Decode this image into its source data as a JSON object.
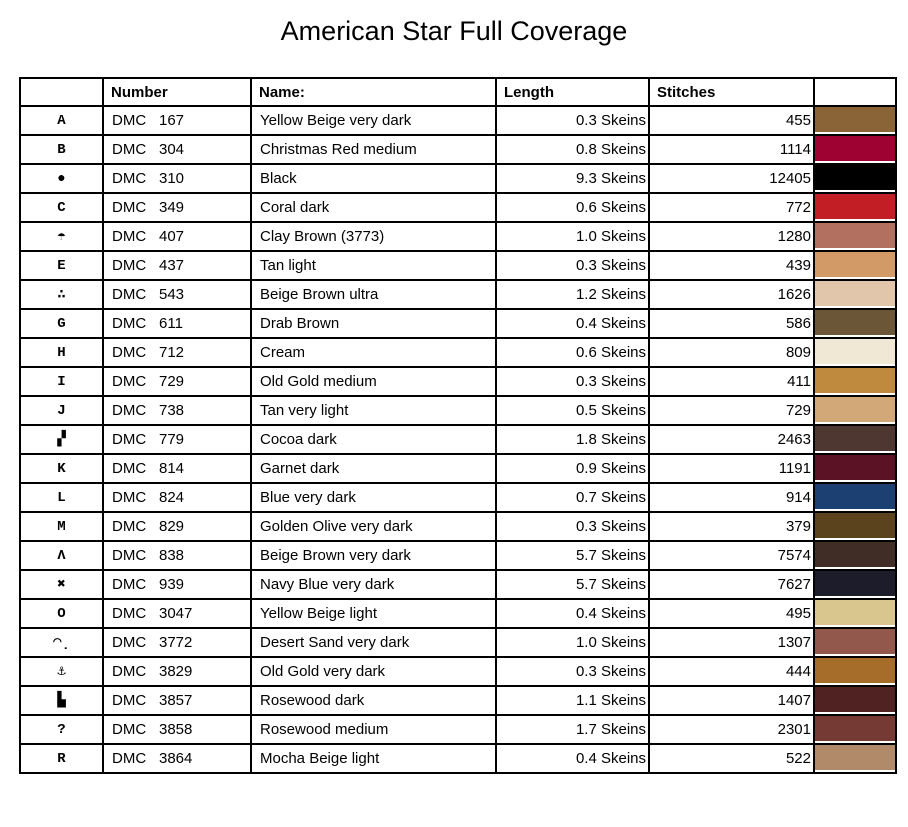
{
  "title": "American Star Full Coverage",
  "table": {
    "brand": "DMC",
    "headers": {
      "symbol": "",
      "number": "Number",
      "name": "Name:",
      "length": "Length",
      "stitches": "Stitches",
      "color": ""
    },
    "rows": [
      {
        "symbol": "A",
        "number": "167",
        "name": "Yellow Beige very dark",
        "length": "0.3 Skeins",
        "stitches": "455",
        "color": "#8A6337"
      },
      {
        "symbol": "B",
        "number": "304",
        "name": "Christmas Red medium",
        "length": "0.8 Skeins",
        "stitches": "1114",
        "color": "#9E0233"
      },
      {
        "symbol": "●",
        "number": "310",
        "name": "Black",
        "length": "9.3 Skeins",
        "stitches": "12405",
        "color": "#000000"
      },
      {
        "symbol": "C",
        "number": "349",
        "name": "Coral dark",
        "length": "0.6 Skeins",
        "stitches": "772",
        "color": "#C21E25"
      },
      {
        "symbol": "☂",
        "number": "407",
        "name": "Clay Brown (3773)",
        "length": "1.0 Skeins",
        "stitches": "1280",
        "color": "#B27061"
      },
      {
        "symbol": "E",
        "number": "437",
        "name": "Tan light",
        "length": "0.3 Skeins",
        "stitches": "439",
        "color": "#D29A66"
      },
      {
        "symbol": "∴",
        "number": "543",
        "name": "Beige Brown ultra",
        "length": "1.2 Skeins",
        "stitches": "1626",
        "color": "#E2C6AC"
      },
      {
        "symbol": "G",
        "number": "611",
        "name": "Drab Brown",
        "length": "0.4 Skeins",
        "stitches": "586",
        "color": "#6B5738"
      },
      {
        "symbol": "H",
        "number": "712",
        "name": "Cream",
        "length": "0.6 Skeins",
        "stitches": "809",
        "color": "#F0E7D4"
      },
      {
        "symbol": "I",
        "number": "729",
        "name": "Old Gold medium",
        "length": "0.3 Skeins",
        "stitches": "411",
        "color": "#C08A3E"
      },
      {
        "symbol": "J",
        "number": "738",
        "name": "Tan very light",
        "length": "0.5 Skeins",
        "stitches": "729",
        "color": "#D3A878"
      },
      {
        "symbol": "▞",
        "number": "779",
        "name": "Cocoa dark",
        "length": "1.8 Skeins",
        "stitches": "2463",
        "color": "#4F3731"
      },
      {
        "symbol": "K",
        "number": "814",
        "name": "Garnet dark",
        "length": "0.9 Skeins",
        "stitches": "1191",
        "color": "#5B1225"
      },
      {
        "symbol": "L",
        "number": "824",
        "name": "Blue very dark",
        "length": "0.7 Skeins",
        "stitches": "914",
        "color": "#1C4071"
      },
      {
        "symbol": "M",
        "number": "829",
        "name": "Golden Olive very dark",
        "length": "0.3 Skeins",
        "stitches": "379",
        "color": "#5B431D"
      },
      {
        "symbol": "Λ",
        "number": "838",
        "name": "Beige Brown very dark",
        "length": "5.7 Skeins",
        "stitches": "7574",
        "color": "#402E26"
      },
      {
        "symbol": "✖",
        "number": "939",
        "name": "Navy Blue very dark",
        "length": "5.7 Skeins",
        "stitches": "7627",
        "color": "#1D1C2B"
      },
      {
        "symbol": "O",
        "number": "3047",
        "name": "Yellow Beige light",
        "length": "0.4 Skeins",
        "stitches": "495",
        "color": "#D9C68F"
      },
      {
        "symbol": "◠̣",
        "number": "3772",
        "name": "Desert Sand very dark",
        "length": "1.0 Skeins",
        "stitches": "1307",
        "color": "#91584B"
      },
      {
        "symbol": "⚓",
        "number": "3829",
        "name": "Old Gold very dark",
        "length": "0.3 Skeins",
        "stitches": "444",
        "color": "#A66C2A"
      },
      {
        "symbol": "▙",
        "number": "3857",
        "name": "Rosewood dark",
        "length": "1.1 Skeins",
        "stitches": "1407",
        "color": "#502221"
      },
      {
        "symbol": "?",
        "number": "3858",
        "name": "Rosewood medium",
        "length": "1.7 Skeins",
        "stitches": "2301",
        "color": "#743A33"
      },
      {
        "symbol": "R",
        "number": "3864",
        "name": "Mocha Beige light",
        "length": "0.4 Skeins",
        "stitches": "522",
        "color": "#B18A6A"
      }
    ]
  }
}
